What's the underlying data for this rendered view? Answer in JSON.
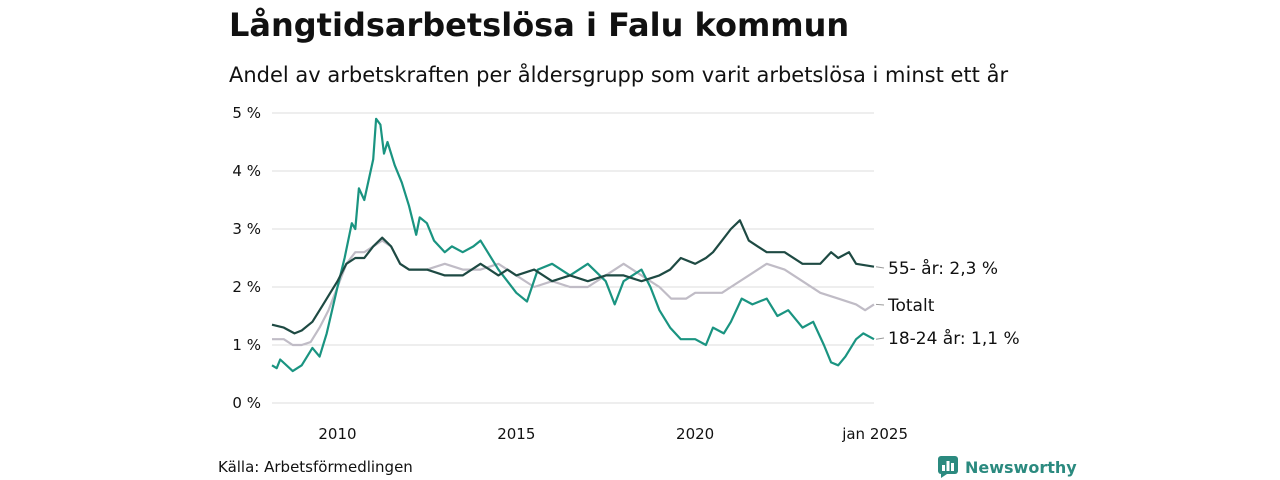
{
  "brand": {
    "name": "Newsworthy",
    "color": "#2b8a7f",
    "icon": "bar-chart-icon"
  },
  "source": "Källa: Arbetsförmedlingen",
  "chart_data": {
    "type": "line",
    "title": "Långtidsarbetslösa i Falu kommun",
    "subtitle": "Andel av arbetskraften per åldersgrupp som varit arbetslösa i minst ett år",
    "xlabel": "",
    "ylabel": "",
    "xlim": [
      2008.17,
      2025.0
    ],
    "ylim": [
      0,
      5
    ],
    "y_ticks": [
      {
        "value": 0,
        "label": "0 %"
      },
      {
        "value": 1,
        "label": "1 %"
      },
      {
        "value": 2,
        "label": "2 %"
      },
      {
        "value": 3,
        "label": "3 %"
      },
      {
        "value": 4,
        "label": "4 %"
      },
      {
        "value": 5,
        "label": "5 %"
      }
    ],
    "x_ticks": [
      {
        "value": 2010,
        "label": "2010"
      },
      {
        "value": 2015,
        "label": "2015"
      },
      {
        "value": 2020,
        "label": "2020"
      },
      {
        "value": 2025,
        "label": "jan 2025"
      }
    ],
    "grid": true,
    "legend": "direct labels at line ends",
    "series": [
      {
        "name": "Totalt",
        "end_label": "Totalt",
        "color": "#c0bcc6",
        "points": [
          [
            2008.17,
            1.1
          ],
          [
            2008.5,
            1.1
          ],
          [
            2008.75,
            1.0
          ],
          [
            2009.0,
            1.0
          ],
          [
            2009.25,
            1.05
          ],
          [
            2009.5,
            1.3
          ],
          [
            2009.75,
            1.6
          ],
          [
            2010.0,
            2.0
          ],
          [
            2010.25,
            2.4
          ],
          [
            2010.5,
            2.6
          ],
          [
            2010.75,
            2.6
          ],
          [
            2011.0,
            2.7
          ],
          [
            2011.25,
            2.8
          ],
          [
            2011.5,
            2.7
          ],
          [
            2011.75,
            2.4
          ],
          [
            2012.0,
            2.3
          ],
          [
            2012.5,
            2.3
          ],
          [
            2013.0,
            2.4
          ],
          [
            2013.5,
            2.3
          ],
          [
            2014.0,
            2.3
          ],
          [
            2014.5,
            2.4
          ],
          [
            2015.0,
            2.2
          ],
          [
            2015.5,
            2.0
          ],
          [
            2016.0,
            2.1
          ],
          [
            2016.5,
            2.0
          ],
          [
            2017.0,
            2.0
          ],
          [
            2017.5,
            2.2
          ],
          [
            2018.0,
            2.4
          ],
          [
            2018.5,
            2.2
          ],
          [
            2019.0,
            2.0
          ],
          [
            2019.33,
            1.8
          ],
          [
            2019.75,
            1.8
          ],
          [
            2020.0,
            1.9
          ],
          [
            2020.5,
            1.9
          ],
          [
            2020.75,
            1.9
          ],
          [
            2021.0,
            2.0
          ],
          [
            2021.5,
            2.2
          ],
          [
            2022.0,
            2.4
          ],
          [
            2022.5,
            2.3
          ],
          [
            2023.0,
            2.1
          ],
          [
            2023.5,
            1.9
          ],
          [
            2024.0,
            1.8
          ],
          [
            2024.5,
            1.7
          ],
          [
            2024.75,
            1.6
          ],
          [
            2025.0,
            1.7
          ]
        ]
      },
      {
        "name": "18-24 år",
        "end_label": "18-24 år: 1,1 %",
        "color": "#1a9481",
        "points": [
          [
            2008.17,
            0.65
          ],
          [
            2008.3,
            0.6
          ],
          [
            2008.4,
            0.75
          ],
          [
            2008.75,
            0.55
          ],
          [
            2009.0,
            0.65
          ],
          [
            2009.3,
            0.95
          ],
          [
            2009.5,
            0.8
          ],
          [
            2009.7,
            1.2
          ],
          [
            2010.0,
            2.0
          ],
          [
            2010.2,
            2.5
          ],
          [
            2010.4,
            3.1
          ],
          [
            2010.5,
            3.0
          ],
          [
            2010.6,
            3.7
          ],
          [
            2010.75,
            3.5
          ],
          [
            2011.0,
            4.2
          ],
          [
            2011.08,
            4.9
          ],
          [
            2011.2,
            4.8
          ],
          [
            2011.3,
            4.3
          ],
          [
            2011.4,
            4.5
          ],
          [
            2011.6,
            4.1
          ],
          [
            2011.8,
            3.8
          ],
          [
            2012.0,
            3.4
          ],
          [
            2012.2,
            2.9
          ],
          [
            2012.3,
            3.2
          ],
          [
            2012.5,
            3.1
          ],
          [
            2012.7,
            2.8
          ],
          [
            2013.0,
            2.6
          ],
          [
            2013.2,
            2.7
          ],
          [
            2013.5,
            2.6
          ],
          [
            2013.8,
            2.7
          ],
          [
            2014.0,
            2.8
          ],
          [
            2014.2,
            2.6
          ],
          [
            2014.5,
            2.3
          ],
          [
            2014.75,
            2.1
          ],
          [
            2015.0,
            1.9
          ],
          [
            2015.3,
            1.75
          ],
          [
            2015.6,
            2.3
          ],
          [
            2016.0,
            2.4
          ],
          [
            2016.5,
            2.2
          ],
          [
            2017.0,
            2.4
          ],
          [
            2017.5,
            2.1
          ],
          [
            2017.75,
            1.7
          ],
          [
            2018.0,
            2.1
          ],
          [
            2018.5,
            2.3
          ],
          [
            2018.75,
            2.0
          ],
          [
            2019.0,
            1.6
          ],
          [
            2019.3,
            1.3
          ],
          [
            2019.6,
            1.1
          ],
          [
            2020.0,
            1.1
          ],
          [
            2020.3,
            1.0
          ],
          [
            2020.5,
            1.3
          ],
          [
            2020.8,
            1.2
          ],
          [
            2021.0,
            1.4
          ],
          [
            2021.3,
            1.8
          ],
          [
            2021.6,
            1.7
          ],
          [
            2022.0,
            1.8
          ],
          [
            2022.3,
            1.5
          ],
          [
            2022.6,
            1.6
          ],
          [
            2023.0,
            1.3
          ],
          [
            2023.3,
            1.4
          ],
          [
            2023.6,
            1.0
          ],
          [
            2023.8,
            0.7
          ],
          [
            2024.0,
            0.65
          ],
          [
            2024.2,
            0.8
          ],
          [
            2024.5,
            1.1
          ],
          [
            2024.7,
            1.2
          ],
          [
            2025.0,
            1.1
          ]
        ]
      },
      {
        "name": "55- år",
        "end_label": "55- år: 2,3 %",
        "color": "#1e4a43",
        "points": [
          [
            2008.17,
            1.35
          ],
          [
            2008.5,
            1.3
          ],
          [
            2008.8,
            1.2
          ],
          [
            2009.0,
            1.25
          ],
          [
            2009.3,
            1.4
          ],
          [
            2009.6,
            1.7
          ],
          [
            2009.8,
            1.9
          ],
          [
            2010.0,
            2.1
          ],
          [
            2010.25,
            2.4
          ],
          [
            2010.5,
            2.5
          ],
          [
            2010.75,
            2.5
          ],
          [
            2011.0,
            2.7
          ],
          [
            2011.25,
            2.85
          ],
          [
            2011.5,
            2.7
          ],
          [
            2011.75,
            2.4
          ],
          [
            2012.0,
            2.3
          ],
          [
            2012.5,
            2.3
          ],
          [
            2013.0,
            2.2
          ],
          [
            2013.5,
            2.2
          ],
          [
            2014.0,
            2.4
          ],
          [
            2014.25,
            2.3
          ],
          [
            2014.5,
            2.2
          ],
          [
            2014.75,
            2.3
          ],
          [
            2015.0,
            2.2
          ],
          [
            2015.5,
            2.3
          ],
          [
            2016.0,
            2.1
          ],
          [
            2016.5,
            2.2
          ],
          [
            2017.0,
            2.1
          ],
          [
            2017.5,
            2.2
          ],
          [
            2018.0,
            2.2
          ],
          [
            2018.5,
            2.1
          ],
          [
            2019.0,
            2.2
          ],
          [
            2019.3,
            2.3
          ],
          [
            2019.6,
            2.5
          ],
          [
            2020.0,
            2.4
          ],
          [
            2020.3,
            2.5
          ],
          [
            2020.5,
            2.6
          ],
          [
            2020.75,
            2.8
          ],
          [
            2021.0,
            3.0
          ],
          [
            2021.25,
            3.15
          ],
          [
            2021.5,
            2.8
          ],
          [
            2021.75,
            2.7
          ],
          [
            2022.0,
            2.6
          ],
          [
            2022.5,
            2.6
          ],
          [
            2023.0,
            2.4
          ],
          [
            2023.5,
            2.4
          ],
          [
            2023.8,
            2.6
          ],
          [
            2024.0,
            2.5
          ],
          [
            2024.3,
            2.6
          ],
          [
            2024.5,
            2.4
          ],
          [
            2025.0,
            2.35
          ]
        ]
      }
    ]
  }
}
